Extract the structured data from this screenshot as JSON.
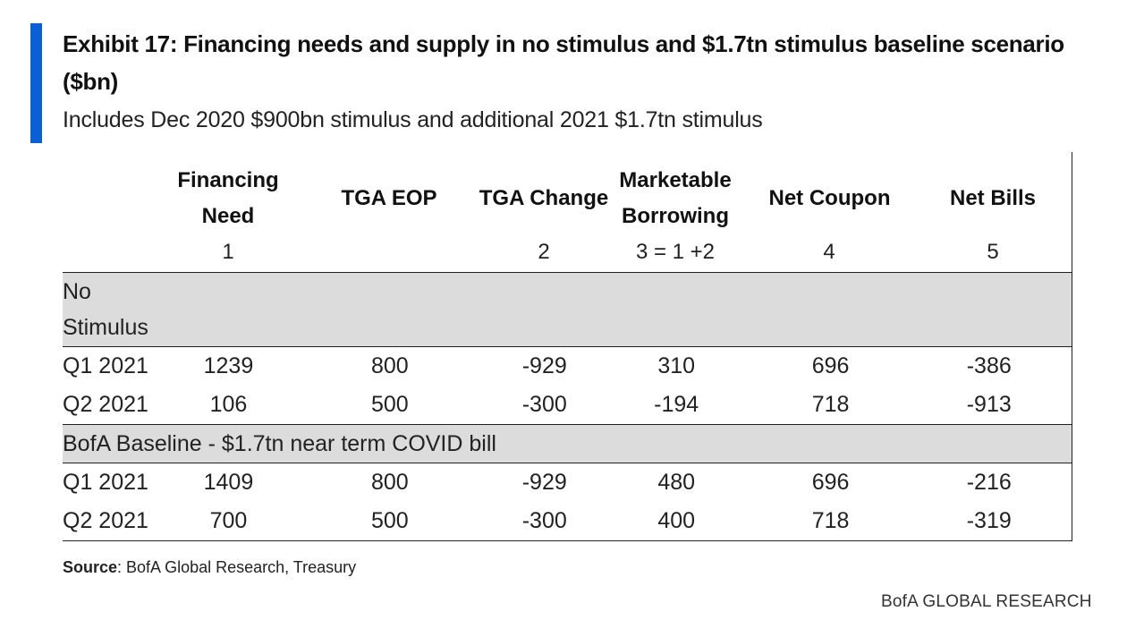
{
  "title": "Exhibit 17: Financing needs and supply in no stimulus and $1.7tn stimulus baseline scenario ($bn)",
  "subtitle": "Includes Dec 2020 $900bn stimulus and additional 2021 $1.7tn stimulus",
  "accent_color": "#0b5fd6",
  "columns": [
    {
      "label": "Financing Need",
      "number": "1"
    },
    {
      "label": "TGA EOP",
      "number": ""
    },
    {
      "label": "TGA Change",
      "number": "2"
    },
    {
      "label": "Marketable Borrowing",
      "number": "3 = 1 +2"
    },
    {
      "label": "Net Coupon",
      "number": "4"
    },
    {
      "label": "Net Bills",
      "number": "5"
    }
  ],
  "sections": [
    {
      "name_line1": "No",
      "name_line2": "Stimulus",
      "rows": [
        {
          "label": "Q1 2021",
          "values": [
            "1239",
            "800",
            "-929",
            "310",
            "696",
            "-386"
          ]
        },
        {
          "label": "Q2 2021",
          "values": [
            "106",
            "500",
            "-300",
            "-194",
            "718",
            "-913"
          ]
        }
      ]
    },
    {
      "name_line1": "BofA Baseline - $1.7tn near term COVID bill",
      "rows": [
        {
          "label": "Q1 2021",
          "values": [
            "1409",
            "800",
            "-929",
            "480",
            "696",
            "-216"
          ]
        },
        {
          "label": "Q2 2021",
          "values": [
            "700",
            "500",
            "-300",
            "400",
            "718",
            "-319"
          ]
        }
      ]
    }
  ],
  "source_label": "Source",
  "source_text": ": BofA Global Research, Treasury",
  "footer": "BofA GLOBAL RESEARCH"
}
